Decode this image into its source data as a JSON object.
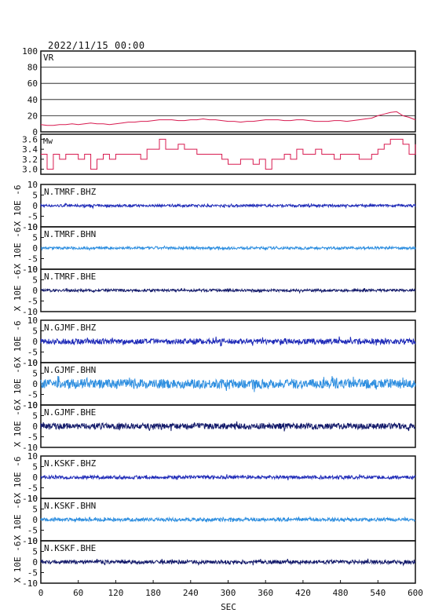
{
  "chart_data": {
    "type": "line",
    "title": "2022/11/15 00:00",
    "xlabel": "SEC",
    "xlim": [
      0,
      600
    ],
    "xticks": [
      "0",
      "60",
      "120",
      "180",
      "240",
      "300",
      "360",
      "420",
      "480",
      "540",
      "600"
    ],
    "grid": "horizontal lines on VR panel",
    "panels": [
      {
        "label": "VR",
        "ylim": [
          0,
          100
        ],
        "yticks": [
          "100",
          "80",
          "60",
          "40",
          "20",
          "0"
        ],
        "color": "#d81b50",
        "step_sec": 10,
        "values": [
          9,
          8,
          8,
          9,
          9,
          10,
          9,
          10,
          11,
          10,
          10,
          9,
          10,
          11,
          12,
          12,
          13,
          13,
          14,
          15,
          15,
          15,
          14,
          14,
          15,
          15,
          16,
          15,
          15,
          14,
          13,
          13,
          12,
          13,
          13,
          14,
          15,
          15,
          15,
          14,
          14,
          15,
          15,
          14,
          13,
          13,
          13,
          14,
          14,
          13,
          14,
          15,
          16,
          17,
          20,
          22,
          24,
          25,
          20,
          18,
          15
        ]
      },
      {
        "label": "Mw",
        "ylim": [
          2.9,
          3.7
        ],
        "yticks": [
          "3.6",
          "3.4",
          "3.2",
          "3.0"
        ],
        "color": "#d81b50",
        "step_sec": 10,
        "values": [
          3.3,
          3.0,
          3.3,
          3.2,
          3.3,
          3.3,
          3.2,
          3.3,
          3.0,
          3.2,
          3.3,
          3.2,
          3.3,
          3.3,
          3.3,
          3.3,
          3.2,
          3.4,
          3.4,
          3.6,
          3.4,
          3.4,
          3.5,
          3.4,
          3.4,
          3.3,
          3.3,
          3.3,
          3.3,
          3.2,
          3.1,
          3.1,
          3.2,
          3.2,
          3.1,
          3.2,
          3.0,
          3.2,
          3.2,
          3.3,
          3.2,
          3.4,
          3.3,
          3.3,
          3.4,
          3.3,
          3.3,
          3.2,
          3.3,
          3.3,
          3.3,
          3.2,
          3.2,
          3.3,
          3.4,
          3.5,
          3.6,
          3.6,
          3.5,
          3.3,
          3.5
        ]
      }
    ],
    "waveform_ylabel": "X 10E -6",
    "waveform_ylim": [
      -10,
      10
    ],
    "waveform_yticks": [
      "10",
      "5",
      "0",
      "-5",
      "-10"
    ],
    "waveforms": [
      {
        "name": "N.TMRF.BHZ",
        "color": "#1f2bb8",
        "amplitude": 0.6
      },
      {
        "name": "N.TMRF.BHN",
        "color": "#2f8fe0",
        "amplitude": 0.6
      },
      {
        "name": "N.TMRF.BHE",
        "color": "#131a6a",
        "amplitude": 0.6
      },
      {
        "name": "N.GJMF.BHZ",
        "color": "#1f2bb8",
        "amplitude": 1.3
      },
      {
        "name": "N.GJMF.BHN",
        "color": "#2f8fe0",
        "amplitude": 2.2
      },
      {
        "name": "N.GJMF.BHE",
        "color": "#131a6a",
        "amplitude": 1.4
      },
      {
        "name": "N.KSKF.BHZ",
        "color": "#1f2bb8",
        "amplitude": 0.8
      },
      {
        "name": "N.KSKF.BHN",
        "color": "#2f8fe0",
        "amplitude": 0.8
      },
      {
        "name": "N.KSKF.BHE",
        "color": "#131a6a",
        "amplitude": 0.9
      }
    ]
  }
}
